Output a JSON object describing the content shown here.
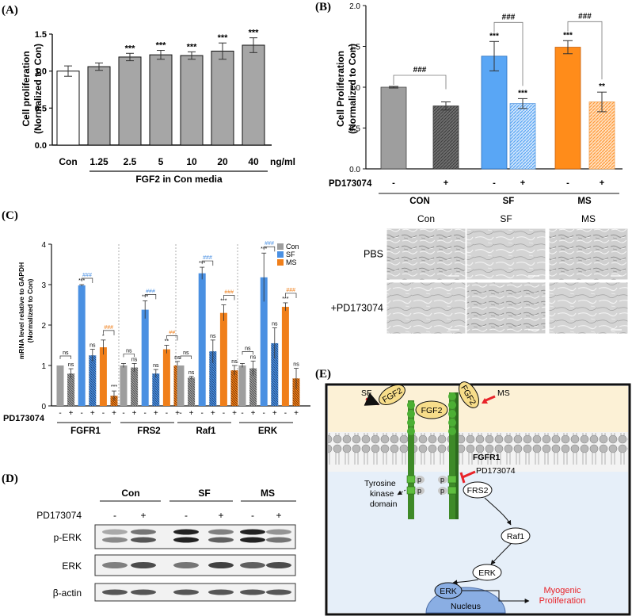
{
  "panel_labels": {
    "A": "(A)",
    "B": "(B)",
    "C": "(C)",
    "D": "(D)",
    "E": "(E)"
  },
  "chart_data": [
    {
      "id": "A",
      "type": "bar",
      "ylabel": "Cell proliferation\n(Normalized to Con)",
      "ylim": [
        0,
        1.5
      ],
      "yticks": [
        0,
        0.5,
        1.0,
        1.5
      ],
      "ytick_labels": [
        "0.0",
        "0.5",
        "1.0",
        "1.5"
      ],
      "categories": [
        "Con",
        "1.25",
        "2.5",
        "5",
        "10",
        "20",
        "40"
      ],
      "values": [
        1.0,
        1.06,
        1.19,
        1.22,
        1.21,
        1.27,
        1.35
      ],
      "errors": [
        0.07,
        0.05,
        0.05,
        0.06,
        0.05,
        0.11,
        0.1
      ],
      "significance": [
        "",
        "",
        "***",
        "***",
        "***",
        "***",
        "***"
      ],
      "colors": [
        "#ffffff",
        "#a6a6a6",
        "#a6a6a6",
        "#a6a6a6",
        "#a6a6a6",
        "#a6a6a6",
        "#a6a6a6"
      ],
      "unit_label": "ng/ml",
      "group_label": "FGF2  in Con media"
    },
    {
      "id": "B",
      "type": "bar",
      "ylabel": "Cell Proliferation\n(Normalized to Con)",
      "ylim": [
        0,
        2.0
      ],
      "yticks": [
        0,
        0.5,
        1.0,
        1.5,
        2.0
      ],
      "ytick_labels": [
        "0.0",
        "0.5",
        "1.0",
        "1.5",
        "2.0"
      ],
      "values": [
        1.0,
        0.77,
        1.38,
        0.8,
        1.49,
        0.82
      ],
      "errors": [
        0.01,
        0.05,
        0.18,
        0.06,
        0.08,
        0.12
      ],
      "colors": [
        "#9e9e9e",
        "#6e6e6e",
        "#59a6f5",
        "#a8cef5",
        "#ff8c1a",
        "#ffc58a"
      ],
      "significance": [
        "",
        "",
        "***",
        "***",
        "***",
        "**"
      ],
      "brackets": [
        "###",
        "###",
        "###"
      ],
      "treatment_label": "PD173074",
      "treatment": [
        "-",
        "+",
        "-",
        "+",
        "-",
        "+"
      ],
      "groups": [
        "CON",
        "SF",
        "MS"
      ]
    },
    {
      "id": "C",
      "type": "bar",
      "ylabel": "mRNA level relative to GAPDH\n(Normalized to Con)",
      "ylim": [
        0,
        4
      ],
      "yticks": [
        0,
        1,
        2,
        3,
        4
      ],
      "ytick_labels": [
        "0",
        "1",
        "2",
        "3",
        "4"
      ],
      "legend": [
        {
          "name": "Con",
          "color": "#9e9e9e"
        },
        {
          "name": "SF",
          "color": "#4a90e2"
        },
        {
          "name": "MS",
          "color": "#f07f1a"
        }
      ],
      "genes": [
        "FGFR1",
        "FRS2",
        "Raf1",
        "ERK"
      ],
      "treatment_label": "PD173074",
      "treatment": [
        "-",
        "+",
        "-",
        "+",
        "-",
        "+"
      ],
      "series": [
        {
          "gene": "FGFR1",
          "values": [
            1.0,
            0.8,
            2.98,
            1.25,
            1.45,
            0.25
          ],
          "errors": [
            0.0,
            0.12,
            0.02,
            0.15,
            0.18,
            0.12
          ],
          "labels": [
            "",
            "ns",
            "***",
            "ns",
            "*",
            "***"
          ]
        },
        {
          "gene": "FRS2",
          "values": [
            1.0,
            0.95,
            2.38,
            0.8,
            1.4,
            1.0
          ],
          "errors": [
            0.05,
            0.1,
            0.22,
            0.1,
            0.1,
            0.1
          ],
          "labels": [
            "",
            "ns",
            "***",
            "ns",
            "**",
            "ns"
          ]
        },
        {
          "gene": "Raf1",
          "values": [
            1.0,
            0.7,
            3.28,
            1.35,
            2.3,
            0.88
          ],
          "errors": [
            0.0,
            0.03,
            0.15,
            0.28,
            0.2,
            0.12
          ],
          "labels": [
            "",
            "ns",
            "***",
            "ns",
            "***",
            "ns"
          ]
        },
        {
          "gene": "ERK",
          "values": [
            1.0,
            0.93,
            3.18,
            1.55,
            2.45,
            0.68
          ],
          "errors": [
            0.05,
            0.18,
            0.6,
            0.38,
            0.1,
            0.25
          ],
          "labels": [
            "",
            "ns",
            "***",
            "ns",
            "***",
            "ns"
          ]
        }
      ],
      "top_ns": [
        "ns",
        "ns",
        "ns",
        "ns"
      ],
      "blue_hash": [
        "###",
        "###",
        "###",
        "###"
      ],
      "orange_hash": [
        "###",
        "##",
        "###",
        "###"
      ]
    }
  ],
  "micrographs": {
    "columns": [
      "Con",
      "SF",
      "MS"
    ],
    "rows": [
      "PBS",
      "+PD173074"
    ]
  },
  "western": {
    "groups": [
      "Con",
      "SF",
      "MS"
    ],
    "treatment_label": "PD173074",
    "treatment": [
      "-",
      "+",
      "-",
      "+",
      "-",
      "+"
    ],
    "rows": [
      "p-ERK",
      "ERK",
      "β-actin"
    ]
  },
  "diagram": {
    "fgf2": "FGF2",
    "sf": "SF",
    "ms": "MS",
    "fgfr1": "FGFR1",
    "inhibitor": "PD173074",
    "tk_line1": "Tyrosine",
    "tk_line2": "kinase",
    "tk_line3": "domain",
    "p": "p",
    "frs2": "FRS2",
    "raf1": "Raf1",
    "erk": "ERK",
    "nucleus": "Nucleus",
    "out1": "Myogenic",
    "out2": "Proliferation",
    "out_color": "#e8242a"
  }
}
